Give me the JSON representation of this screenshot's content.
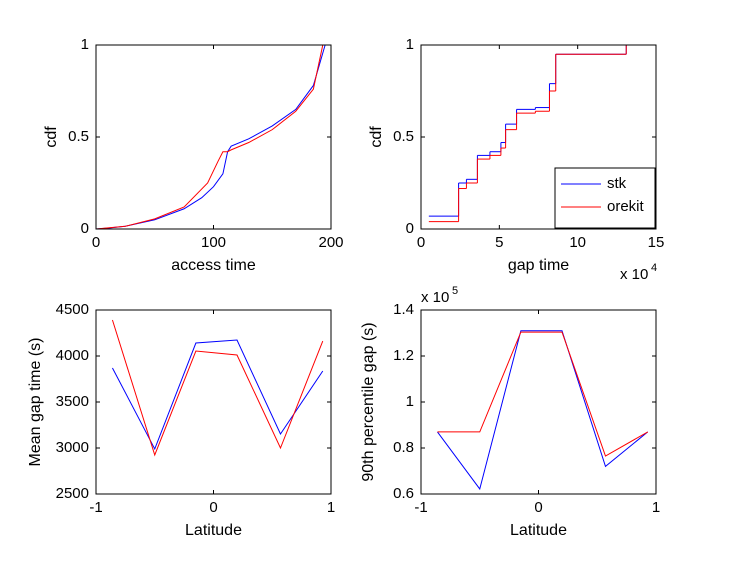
{
  "chart_data": [
    {
      "type": "line",
      "xlabel": "access time",
      "ylabel": "cdf",
      "xlim": [
        0,
        200
      ],
      "xticks": [
        0,
        100,
        200
      ],
      "ylim": [
        0,
        1
      ],
      "yticks": [
        0,
        0.5,
        1
      ],
      "series": [
        {
          "color": "#0000ff",
          "x": [
            0,
            10,
            25,
            50,
            75,
            90,
            100,
            108,
            112,
            115,
            130,
            150,
            170,
            185,
            195
          ],
          "values": [
            0,
            0.005,
            0.015,
            0.05,
            0.11,
            0.17,
            0.23,
            0.3,
            0.42,
            0.45,
            0.49,
            0.56,
            0.65,
            0.78,
            1
          ]
        },
        {
          "color": "#ff0000",
          "x": [
            0,
            25,
            50,
            75,
            95,
            104,
            108,
            112,
            115,
            130,
            150,
            170,
            185,
            193
          ],
          "values": [
            0,
            0.015,
            0.055,
            0.12,
            0.25,
            0.37,
            0.42,
            0.42,
            0.43,
            0.47,
            0.54,
            0.64,
            0.76,
            1
          ]
        }
      ]
    },
    {
      "type": "step",
      "xlabel": "gap time",
      "ylabel": "cdf",
      "xlim": [
        0,
        15
      ],
      "xticks": [
        0,
        5,
        10,
        15
      ],
      "x_multiplier": "x 10",
      "x_exponent": "4",
      "ylim": [
        0,
        1
      ],
      "yticks": [
        0,
        0.5,
        1
      ],
      "legend": "southeast",
      "x": [
        0.5,
        2.4,
        2.9,
        3.6,
        4.4,
        5.1,
        5.4,
        6.1,
        7.3,
        8.2,
        8.6,
        13.1
      ],
      "series": [
        {
          "name": "stk",
          "color": "#0000ff",
          "values": [
            0.07,
            0.25,
            0.27,
            0.4,
            0.42,
            0.47,
            0.57,
            0.65,
            0.66,
            0.79,
            0.95,
            1
          ]
        },
        {
          "name": "orekit",
          "color": "#ff0000",
          "values": [
            0.04,
            0.22,
            0.25,
            0.38,
            0.4,
            0.44,
            0.54,
            0.63,
            0.64,
            0.75,
            0.95,
            1
          ]
        }
      ]
    },
    {
      "type": "line",
      "xlabel": "Latitude",
      "ylabel": "Mean gap time (s)",
      "xlim": [
        -1,
        1
      ],
      "xticks": [
        -1,
        0,
        1
      ],
      "ylim": [
        2500,
        4500
      ],
      "yticks": [
        2500,
        3000,
        3500,
        4000,
        4500
      ],
      "x": [
        -0.86,
        -0.5,
        -0.15,
        0.2,
        0.57,
        0.93
      ],
      "series": [
        {
          "color": "#0000ff",
          "values": [
            3870,
            2990,
            4141,
            4174,
            3152,
            3837
          ]
        },
        {
          "color": "#ff0000",
          "values": [
            4391,
            2924,
            4054,
            4011,
            3000,
            4163
          ]
        }
      ]
    },
    {
      "type": "line",
      "xlabel": "Latitude",
      "ylabel": "90th percentile gap (s)",
      "xlim": [
        -1,
        1
      ],
      "xticks": [
        -1,
        0,
        1
      ],
      "ylim": [
        0.6,
        1.4
      ],
      "yticks": [
        0.6,
        0.8,
        1,
        1.2,
        1.4
      ],
      "y_multiplier": "x 10",
      "y_exponent": "5",
      "x": [
        -0.86,
        -0.5,
        -0.15,
        0.2,
        0.57,
        0.93
      ],
      "series": [
        {
          "color": "#0000ff",
          "values": [
            0.87,
            0.622,
            1.31,
            1.31,
            0.72,
            0.87
          ]
        },
        {
          "color": "#ff0000",
          "values": [
            0.87,
            0.87,
            1.304,
            1.304,
            0.765,
            0.87
          ]
        }
      ]
    }
  ]
}
